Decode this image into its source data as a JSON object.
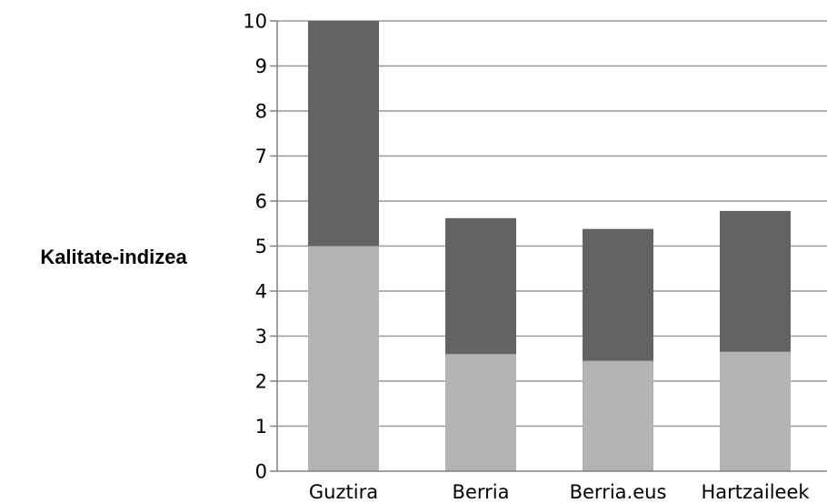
{
  "chart_data": {
    "type": "bar",
    "stacked": true,
    "categories": [
      "Guztira",
      "Berria",
      "Berria.eus",
      "Hartzaileek"
    ],
    "series": [
      {
        "values": [
          5.0,
          2.6,
          2.45,
          2.65
        ],
        "color": "#b3b3b3"
      },
      {
        "values": [
          5.0,
          3.02,
          2.93,
          3.13
        ],
        "color": "#636363"
      }
    ],
    "ylabel": "Kalitate-indizea",
    "ylim": [
      0,
      10
    ],
    "yticks": [
      0,
      1,
      2,
      3,
      4,
      5,
      6,
      7,
      8,
      9,
      10
    ],
    "grid": true,
    "legend": "none",
    "colors": {
      "grid": "#999999",
      "axis": "#808080"
    }
  }
}
